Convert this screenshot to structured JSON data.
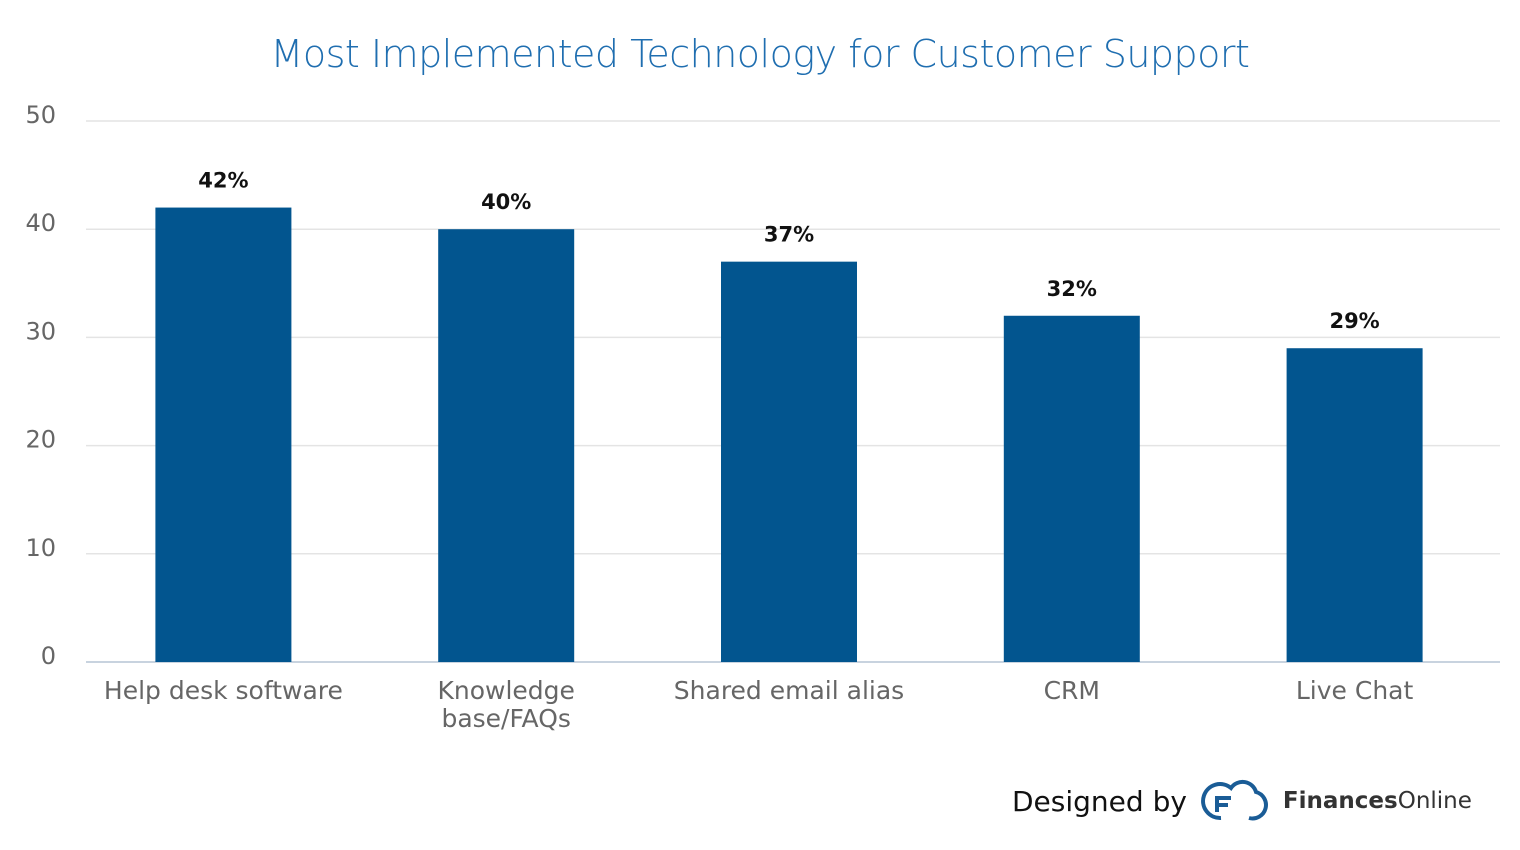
{
  "chart_data": {
    "type": "bar",
    "title": "Most Implemented Technology for Customer Support",
    "categories": [
      [
        "Help desk software"
      ],
      [
        "Knowledge",
        "base/FAQs"
      ],
      [
        "Shared email alias"
      ],
      [
        "CRM"
      ],
      [
        "Live Chat"
      ]
    ],
    "values": [
      42,
      40,
      37,
      32,
      29
    ],
    "data_labels": [
      "42%",
      "40%",
      "37%",
      "32%",
      "29%"
    ],
    "ylim": [
      0,
      50
    ],
    "yticks": [
      0,
      10,
      20,
      30,
      40,
      50
    ],
    "grid": true,
    "bar_color": "#02558f",
    "xlabel": "",
    "ylabel": ""
  },
  "credit": {
    "prefix": "Designed by",
    "brand_bold": "Finances",
    "brand_light": "Online",
    "brand_color": "#1a5c96"
  }
}
